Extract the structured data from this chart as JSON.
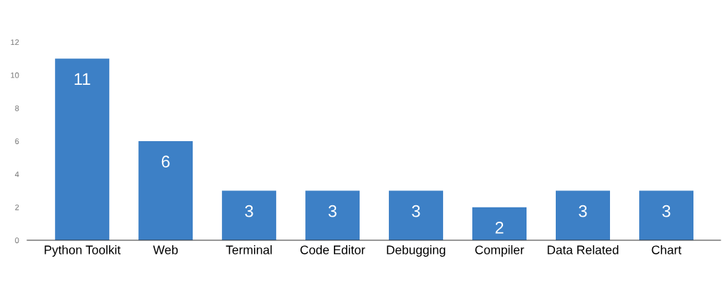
{
  "chart_data": {
    "type": "bar",
    "categories": [
      "Python Toolkit",
      "Web",
      "Terminal",
      "Code Editor",
      "Debugging",
      "Compiler",
      "Data Related",
      "Chart"
    ],
    "values": [
      11,
      6,
      3,
      3,
      3,
      2,
      3,
      3
    ],
    "color": "#3d80c6",
    "ylim": [
      0,
      12
    ],
    "yticks": [
      0,
      2,
      4,
      6,
      8,
      10,
      12
    ],
    "grid": false,
    "data_labels": true,
    "legend": false
  }
}
